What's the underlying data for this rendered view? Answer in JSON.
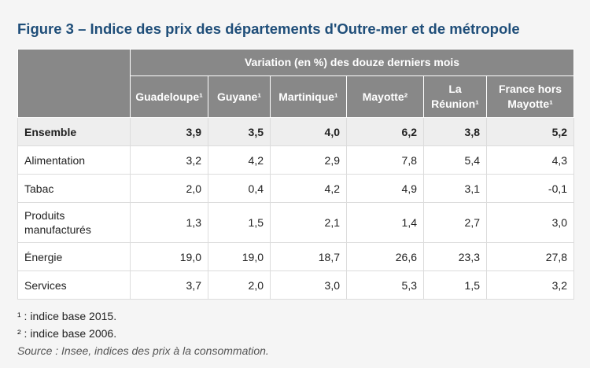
{
  "title": "Figure 3 – Indice des prix des départements d'Outre-mer et de métropole",
  "table": {
    "group_header": "Variation (en %) des douze derniers mois",
    "columns": [
      "Guadeloupe¹",
      "Guyane¹",
      "Martinique¹",
      "Mayotte²",
      "La Réunion¹",
      "France hors Mayotte¹"
    ],
    "rows": [
      {
        "label": "Ensemble",
        "values": [
          "3,9",
          "3,5",
          "4,0",
          "6,2",
          "3,8",
          "5,2"
        ]
      },
      {
        "label": "Alimentation",
        "values": [
          "3,2",
          "4,2",
          "2,9",
          "7,8",
          "5,4",
          "4,3"
        ]
      },
      {
        "label": "Tabac",
        "values": [
          "2,0",
          "0,4",
          "4,2",
          "4,9",
          "3,1",
          "-0,1"
        ]
      },
      {
        "label": "Produits manufacturés",
        "values": [
          "1,3",
          "1,5",
          "2,1",
          "1,4",
          "2,7",
          "3,0"
        ]
      },
      {
        "label": "Énergie",
        "values": [
          "19,0",
          "19,0",
          "18,7",
          "26,6",
          "23,3",
          "27,8"
        ]
      },
      {
        "label": "Services",
        "values": [
          "3,7",
          "2,0",
          "3,0",
          "5,3",
          "1,5",
          "3,2"
        ]
      }
    ]
  },
  "notes": {
    "note1": "¹ : indice base 2015.",
    "note2": "² : indice base 2006.",
    "source": "Source : Insee, indices des prix à la consommation."
  }
}
